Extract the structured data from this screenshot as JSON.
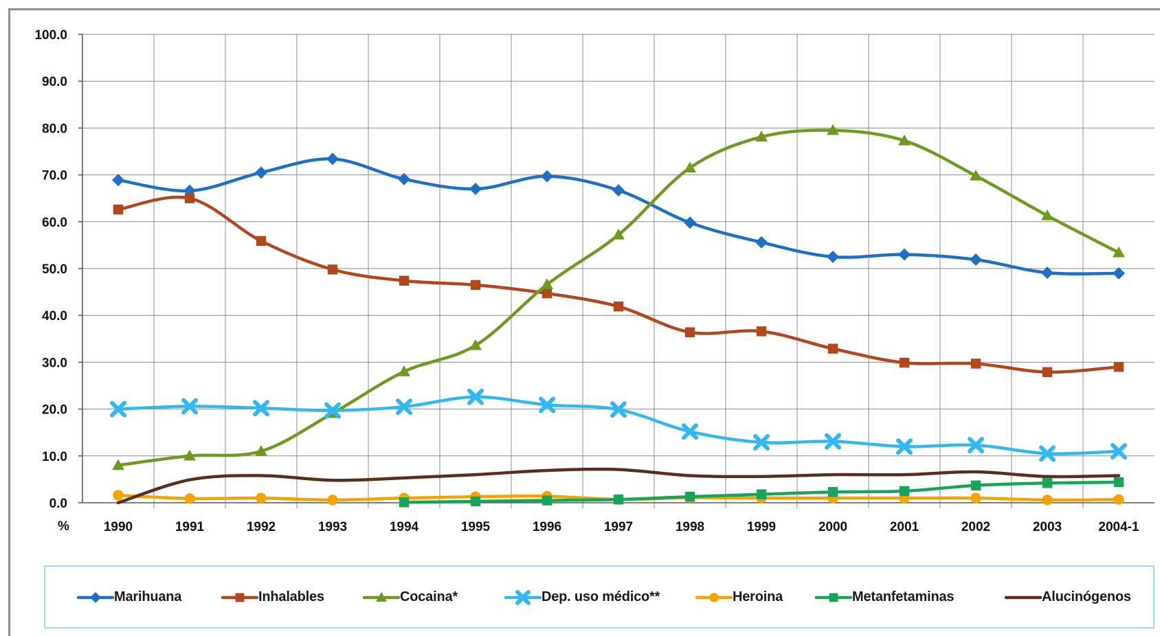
{
  "chart_data": {
    "type": "line",
    "title": "",
    "xlabel": "",
    "ylabel": "%",
    "ylim": [
      0,
      100
    ],
    "y_ticks": [
      "100.0",
      "90.0",
      "80.0",
      "70.0",
      "60.0",
      "50.0",
      "40.0",
      "30.0",
      "20.0",
      "10.0",
      "0.0"
    ],
    "categories": [
      "1990",
      "1991",
      "1992",
      "1993",
      "1994",
      "1995",
      "1996",
      "1997",
      "1998",
      "1999",
      "2000",
      "2001",
      "2002",
      "2003",
      "2004-1"
    ],
    "grid": true,
    "legend_position": "bottom",
    "series": [
      {
        "name": "Marihuana",
        "color": "#1f6fc5",
        "marker": "diamond",
        "values": [
          68.9,
          66.6,
          70.5,
          73.4,
          69.1,
          67.0,
          69.7,
          66.7,
          59.8,
          55.6,
          52.5,
          53.0,
          51.9,
          49.1,
          49.0
        ]
      },
      {
        "name": "Inhalables",
        "color": "#b2461c",
        "marker": "square",
        "values": [
          62.6,
          65.0,
          55.9,
          49.8,
          47.4,
          46.5,
          44.7,
          41.9,
          36.4,
          36.6,
          32.9,
          29.9,
          29.7,
          27.9,
          29.0
        ]
      },
      {
        "name": "Cocaina*",
        "color": "#6f9a1f",
        "marker": "triangle",
        "values": [
          8.0,
          10.0,
          11.0,
          19.1,
          28.0,
          33.6,
          46.6,
          57.2,
          71.5,
          78.1,
          79.5,
          77.3,
          69.8,
          61.3,
          53.4
        ]
      },
      {
        "name": "Dep. uso médico**",
        "color": "#32b8ee",
        "marker": "x",
        "values": [
          20.0,
          20.6,
          20.2,
          19.7,
          20.5,
          22.6,
          20.9,
          19.9,
          15.2,
          12.9,
          13.1,
          12.0,
          12.3,
          10.5,
          11.0
        ]
      },
      {
        "name": "Heroina",
        "color": "#f5a300",
        "marker": "circle",
        "values": [
          1.6,
          0.9,
          1.0,
          0.6,
          1.0,
          1.3,
          1.4,
          0.7,
          1.1,
          1.0,
          1.0,
          1.0,
          1.0,
          0.6,
          0.7
        ]
      },
      {
        "name": "Metanfetaminas",
        "color": "#1aa35a",
        "marker": "square",
        "values": [
          null,
          null,
          null,
          null,
          0.1,
          0.3,
          0.5,
          0.7,
          1.3,
          1.8,
          2.3,
          2.5,
          3.7,
          4.2,
          4.4
        ]
      },
      {
        "name": "Alucinógenos",
        "color": "#5a2e1b",
        "marker": "none",
        "values": [
          0.0,
          4.9,
          5.8,
          4.8,
          5.3,
          6.0,
          6.9,
          7.1,
          5.8,
          5.6,
          6.0,
          6.0,
          6.6,
          5.6,
          5.8
        ]
      }
    ]
  }
}
